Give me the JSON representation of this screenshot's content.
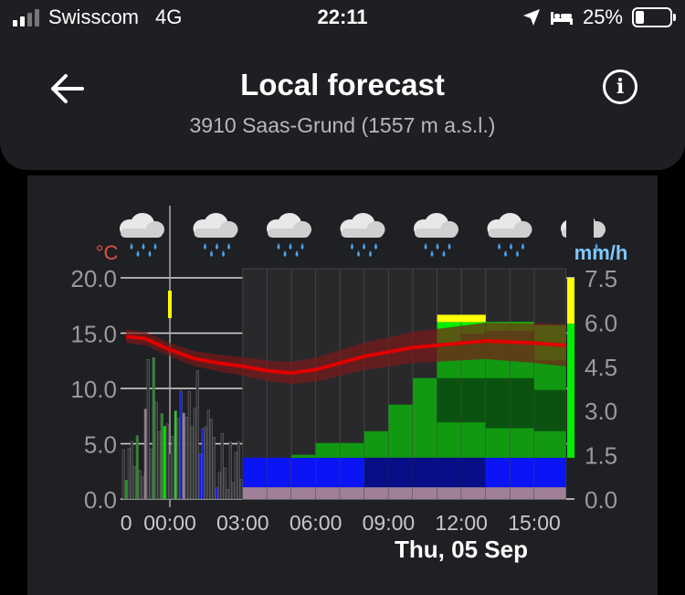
{
  "status_bar": {
    "carrier": "Swisscom",
    "network": "4G",
    "time": "22:11",
    "battery": "25%",
    "battery_level": 0.25,
    "icons": [
      "signal-icon",
      "location-arrow-icon",
      "bed-icon",
      "battery-icon"
    ]
  },
  "header": {
    "title": "Local forecast",
    "subtitle": "3910 Saas-Grund (1557 m a.s.l.)",
    "back_icon": "arrow-left-icon",
    "info_label": "i"
  },
  "colors": {
    "background": "#000000",
    "panel": "#1f2023",
    "temp_line": "#e00000",
    "temp_unit": "#e05040",
    "precip_unit": "#7ec8ff",
    "precip_bright": "#00ee00",
    "precip_green": "#119a11",
    "precip_dark": "#0a3a10",
    "precip_blue": "#0b14f5",
    "precip_navy": "#050a40",
    "precip_mauve": "#a08098",
    "precip_yellow": "#ffff00"
  },
  "chart_data": {
    "type": "bar",
    "temp_unit": "°C",
    "precip_unit": "mm/h",
    "left_ticks": [
      "20.0",
      "15.0",
      "10.0",
      "5.0",
      "0.0"
    ],
    "left_range": [
      0,
      20
    ],
    "right_ticks": [
      "7.5",
      "6.0",
      "4.5",
      "3.0",
      "1.5",
      "0.0"
    ],
    "right_range": [
      0,
      7.5
    ],
    "x_ticks": [
      "0",
      "00:00",
      "03:00",
      "06:00",
      "09:00",
      "12:00",
      "15:00"
    ],
    "x_tick_hours": [
      -1.8,
      0,
      3,
      6,
      9,
      12,
      15
    ],
    "date_label": "Thu, 05 Sep",
    "grid": true,
    "weather_icons": [
      "rain-cloud-icon",
      "rain-cloud-icon",
      "rain-cloud-icon",
      "rain-cloud-icon",
      "rain-cloud-icon",
      "rain-cloud-icon",
      "rain-cloud-icon"
    ],
    "temperature": {
      "hours": [
        -1.8,
        -1,
        0,
        1,
        2,
        3,
        4,
        5,
        6,
        7,
        8,
        9,
        10,
        11,
        12,
        13,
        14,
        15,
        16.3
      ],
      "values": [
        14.7,
        14.5,
        13.5,
        12.7,
        12.3,
        12.0,
        11.6,
        11.4,
        11.7,
        12.3,
        12.9,
        13.3,
        13.7,
        13.9,
        14.1,
        14.3,
        14.2,
        14.1,
        13.9
      ]
    },
    "hourly_precip": [
      {
        "start": 3.0,
        "end": 4.0,
        "value": 0.4,
        "bands": [
          0.0,
          0.1,
          0.3,
          0.4
        ]
      },
      {
        "start": 4.0,
        "end": 5.0,
        "value": 1.4,
        "bands": [
          0.0,
          0.8,
          1.2,
          1.4
        ]
      },
      {
        "start": 5.0,
        "end": 6.0,
        "value": 1.5,
        "bands": [
          0.0,
          0.9,
          1.3,
          1.5
        ]
      },
      {
        "start": 6.0,
        "end": 7.0,
        "value": 1.9,
        "bands": [
          0.0,
          1.1,
          1.7,
          1.9
        ]
      },
      {
        "start": 7.0,
        "end": 8.0,
        "value": 1.9,
        "bands": [
          0.0,
          1.1,
          1.7,
          1.9
        ]
      },
      {
        "start": 8.0,
        "end": 9.0,
        "value": 2.3,
        "bands": [
          0.0,
          1.0,
          1.7,
          2.3
        ]
      },
      {
        "start": 9.0,
        "end": 10.0,
        "value": 3.2,
        "bands": [
          0.0,
          1.0,
          1.7,
          3.2
        ]
      },
      {
        "start": 10.0,
        "end": 11.0,
        "value": 4.1,
        "bands": [
          0.0,
          1.0,
          1.7,
          4.1
        ]
      },
      {
        "start": 11.0,
        "end": 12.0,
        "value": 5.6,
        "bands": [
          2.6,
          4.1,
          5.3,
          6.0
        ]
      },
      {
        "start": 12.0,
        "end": 13.0,
        "value": 5.6,
        "bands": [
          2.6,
          4.1,
          5.6,
          6.0
        ]
      },
      {
        "start": 13.0,
        "end": 14.0,
        "value": 5.7,
        "bands": [
          2.4,
          4.1,
          5.7,
          6.0
        ]
      },
      {
        "start": 14.0,
        "end": 15.0,
        "value": 5.7,
        "bands": [
          2.4,
          4.1,
          5.7,
          6.0
        ]
      },
      {
        "start": 15.0,
        "end": 16.3,
        "value": 4.7,
        "bands": [
          2.3,
          3.7,
          4.7,
          5.9
        ]
      }
    ]
  }
}
